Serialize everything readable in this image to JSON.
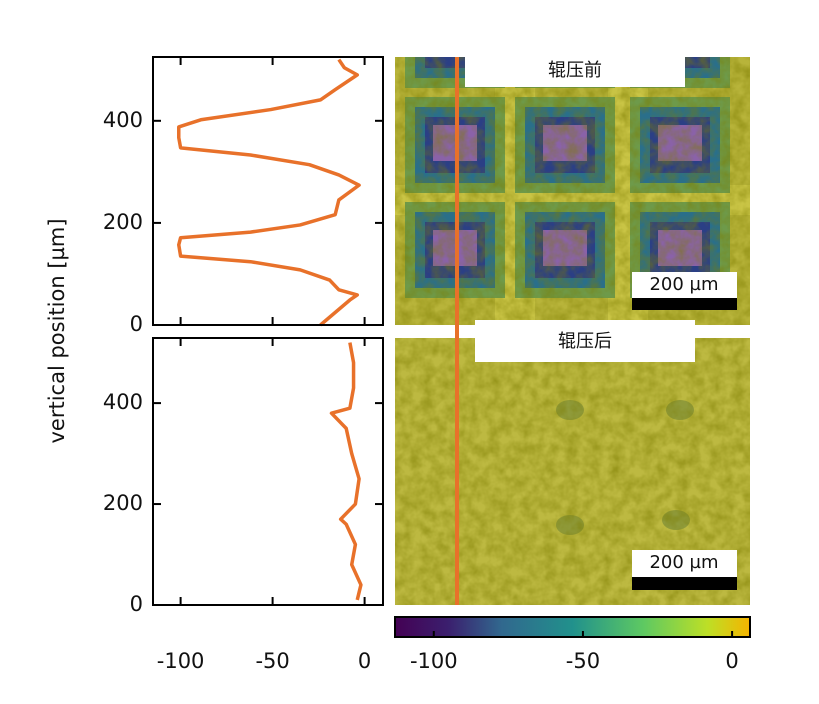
{
  "ylabel": "vertical position [µm]",
  "images": [
    {
      "label": "辊压前",
      "scalebar": "200 µm"
    },
    {
      "label": "辊压后",
      "scalebar": "200 µm"
    }
  ],
  "chart_data": [
    {
      "type": "line",
      "orientation": "vertical",
      "xlim": [
        -115,
        10
      ],
      "ylim": [
        0,
        525
      ],
      "xticks": [
        -100,
        -50,
        0
      ],
      "xtick_labels": false,
      "yticks": [
        0,
        200,
        400
      ],
      "y": [
        0,
        49,
        59,
        69,
        88,
        108,
        124,
        135,
        157,
        171,
        182,
        196,
        216,
        245,
        274,
        294,
        314,
        333,
        347,
        367,
        388,
        402,
        422,
        441,
        461,
        490,
        504,
        520
      ],
      "series": [
        {
          "color": "#e8712a",
          "values": [
            -24,
            -8,
            -4,
            -14,
            -19,
            -35,
            -62,
            -100,
            -101,
            -100,
            -62,
            -35,
            -16,
            -14,
            -3,
            -14,
            -30,
            -62,
            -100,
            -101,
            -101,
            -89,
            -51,
            -24,
            -16,
            -4,
            -11,
            -14
          ]
        }
      ]
    },
    {
      "type": "line",
      "orientation": "vertical",
      "xlim": [
        -115,
        10
      ],
      "ylim": [
        0,
        529
      ],
      "xticks": [
        -100,
        -50,
        0
      ],
      "xtick_labels": true,
      "yticks": [
        0,
        200,
        400
      ],
      "y": [
        10,
        40,
        80,
        120,
        160,
        170,
        200,
        250,
        300,
        350,
        380,
        390,
        430,
        480,
        520
      ],
      "series": [
        {
          "color": "#e8712a",
          "values": [
            -4,
            -2,
            -7,
            -5,
            -10,
            -13,
            -5,
            -3,
            -7,
            -10,
            -18,
            -8,
            -6,
            -6,
            -8
          ]
        }
      ]
    },
    {
      "type": "colorbar",
      "xlim": [
        -113,
        6
      ],
      "xticks": [
        -100,
        -50,
        0
      ]
    }
  ]
}
